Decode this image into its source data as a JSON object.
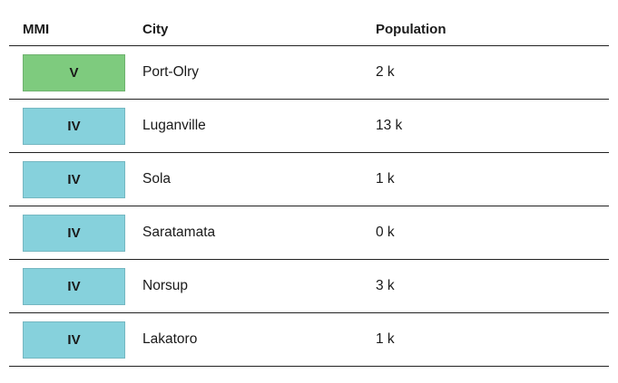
{
  "table": {
    "headers": {
      "mmi": "MMI",
      "city": "City",
      "population": "Population"
    },
    "rows": [
      {
        "mmi": "V",
        "city": "Port-Olry",
        "population": "2 k",
        "color": "#7ecb7e"
      },
      {
        "mmi": "IV",
        "city": "Luganville",
        "population": "13 k",
        "color": "#86d1dc"
      },
      {
        "mmi": "IV",
        "city": "Sola",
        "population": "1 k",
        "color": "#86d1dc"
      },
      {
        "mmi": "IV",
        "city": "Saratamata",
        "population": "0 k",
        "color": "#86d1dc"
      },
      {
        "mmi": "IV",
        "city": "Norsup",
        "population": "3 k",
        "color": "#86d1dc"
      },
      {
        "mmi": "IV",
        "city": "Lakatoro",
        "population": "1 k",
        "color": "#86d1dc"
      }
    ]
  }
}
